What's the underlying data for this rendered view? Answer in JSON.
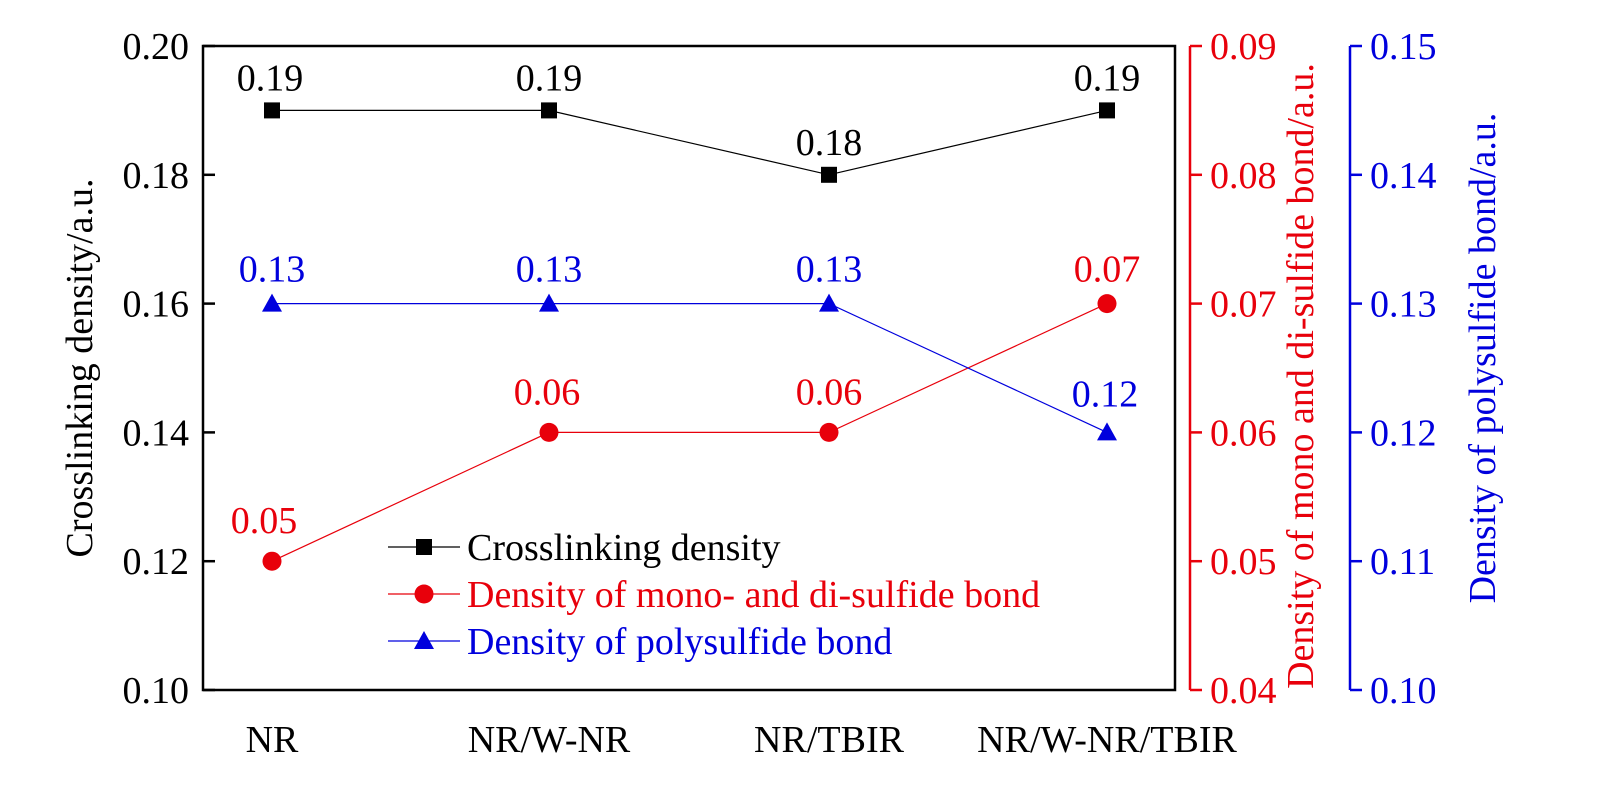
{
  "chart_data": {
    "type": "line",
    "title": "",
    "categories": [
      "NR",
      "NR/W-NR",
      "NR/TBIR",
      "NR/W-NR/TBIR"
    ],
    "axes": {
      "left": {
        "label": "Crosslinking density/a.u.",
        "min": 0.1,
        "max": 0.2,
        "ticks": [
          "0.10",
          "0.12",
          "0.14",
          "0.16",
          "0.18",
          "0.20"
        ],
        "color": "#000000"
      },
      "right1": {
        "label": "Density of mono and di-sulfide bond/a.u.",
        "min": 0.04,
        "max": 0.09,
        "ticks": [
          "0.04",
          "0.05",
          "0.06",
          "0.07",
          "0.08",
          "0.09"
        ],
        "color": "#e8000b"
      },
      "right2": {
        "label": "Density of polysulfide bond/a.u.",
        "min": 0.1,
        "max": 0.15,
        "ticks": [
          "0.10",
          "0.11",
          "0.12",
          "0.13",
          "0.14",
          "0.15"
        ],
        "color": "#0000dd"
      }
    },
    "series": [
      {
        "name": "Crosslinking density",
        "axis": "left",
        "marker": "square",
        "color": "#000000",
        "values": [
          0.19,
          0.19,
          0.18,
          0.19
        ],
        "labels": [
          "0.19",
          "0.19",
          "0.18",
          "0.19"
        ]
      },
      {
        "name": "Density of mono- and di-sulfide bond",
        "axis": "right1",
        "marker": "circle",
        "color": "#e8000b",
        "values": [
          0.05,
          0.06,
          0.06,
          0.07
        ],
        "labels": [
          "0.05",
          "0.06",
          "0.06",
          "0.07"
        ]
      },
      {
        "name": "Density of polysulfide bond",
        "axis": "right2",
        "marker": "triangle",
        "color": "#0000dd",
        "values": [
          0.13,
          0.13,
          0.13,
          0.12
        ],
        "labels": [
          "0.13",
          "0.13",
          "0.13",
          "0.12"
        ]
      }
    ],
    "legend": {
      "position": "lower-center",
      "entries": [
        "Crosslinking density",
        "Density of mono- and di-sulfide bond",
        "Density of polysulfide bond"
      ]
    },
    "grid": false
  }
}
